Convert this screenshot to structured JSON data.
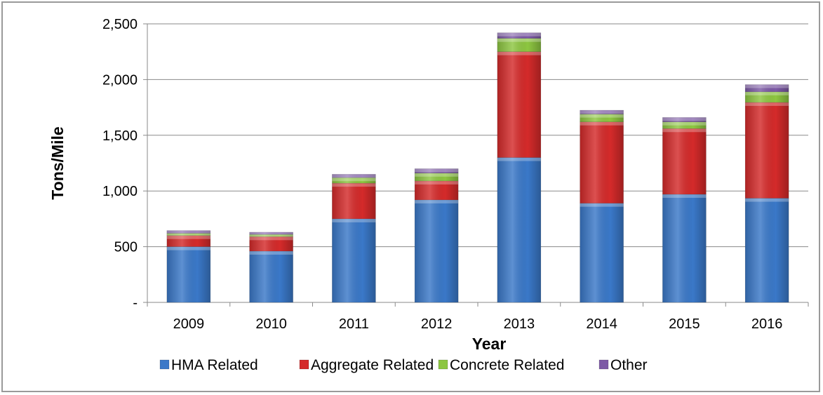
{
  "chart_data": {
    "type": "bar",
    "stacked": true,
    "categories": [
      "2009",
      "2010",
      "2011",
      "2012",
      "2013",
      "2014",
      "2015",
      "2016"
    ],
    "series": [
      {
        "name": "HMA Related",
        "color": "#3a78c8",
        "values": [
          500,
          460,
          750,
          920,
          1300,
          890,
          970,
          935
        ]
      },
      {
        "name": "Aggregate Related",
        "color": "#d42a2a",
        "values": [
          100,
          130,
          320,
          170,
          950,
          730,
          590,
          860
        ]
      },
      {
        "name": "Concrete Related",
        "color": "#8dc641",
        "values": [
          20,
          20,
          50,
          70,
          120,
          70,
          60,
          95
        ]
      },
      {
        "name": "Other",
        "color": "#7d5aa6",
        "values": [
          25,
          20,
          30,
          40,
          50,
          35,
          40,
          65
        ]
      }
    ],
    "yticks": [
      "-",
      "500",
      "1,000",
      "1,500",
      "2,000",
      "2,500"
    ],
    "ytick_values": [
      0,
      500,
      1000,
      1500,
      2000,
      2500
    ],
    "xlabel": "Year",
    "ylabel": "Tons/Mile",
    "ylim": [
      0,
      2500
    ],
    "grid": true,
    "legend_position": "bottom"
  }
}
